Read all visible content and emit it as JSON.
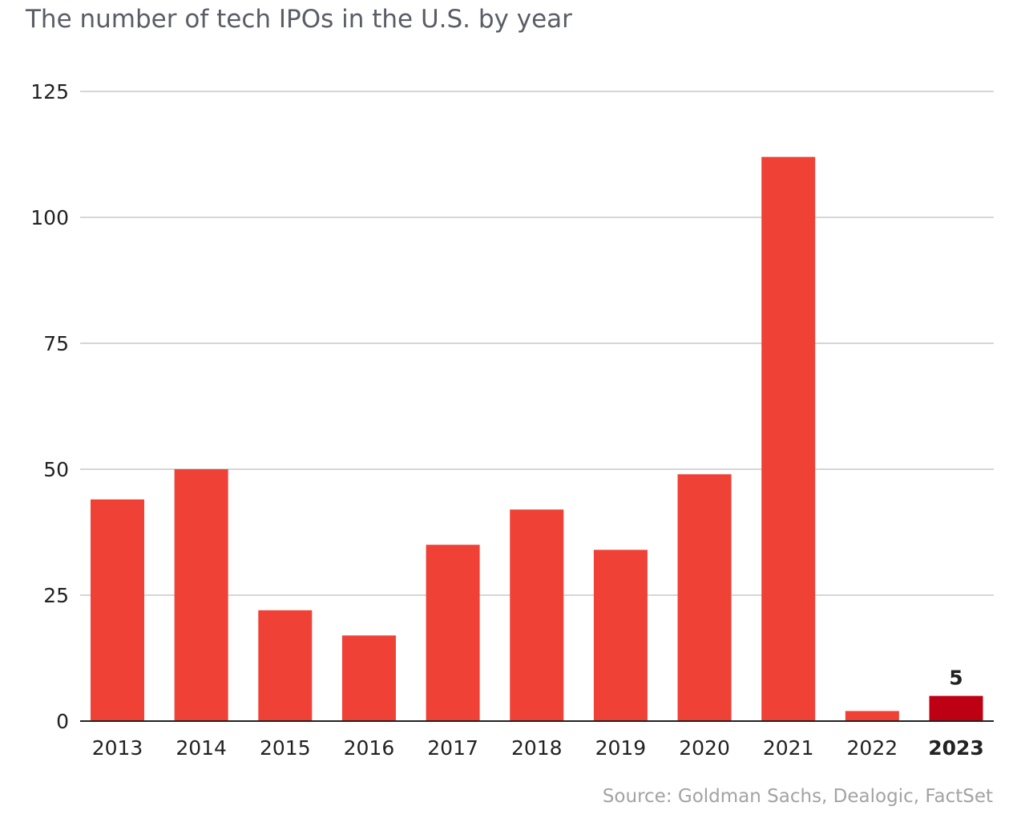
{
  "chart_data": {
    "type": "bar",
    "title": "The number of tech IPOs in the U.S. by year",
    "source": "Source: Goldman Sachs, Dealogic, FactSet",
    "categories": [
      "2013",
      "2014",
      "2015",
      "2016",
      "2017",
      "2018",
      "2019",
      "2020",
      "2021",
      "2022",
      "2023"
    ],
    "values": [
      44,
      50,
      22,
      17,
      35,
      42,
      34,
      49,
      112,
      2,
      5
    ],
    "ylim": [
      0,
      125
    ],
    "yticks": [
      0,
      25,
      50,
      75,
      100,
      125
    ],
    "highlight_index": 10,
    "data_labels": [
      {
        "index": 10,
        "text": "5"
      }
    ],
    "grid": true,
    "colors": {
      "bar": "#ef4136",
      "highlight": "#bd0013"
    }
  }
}
